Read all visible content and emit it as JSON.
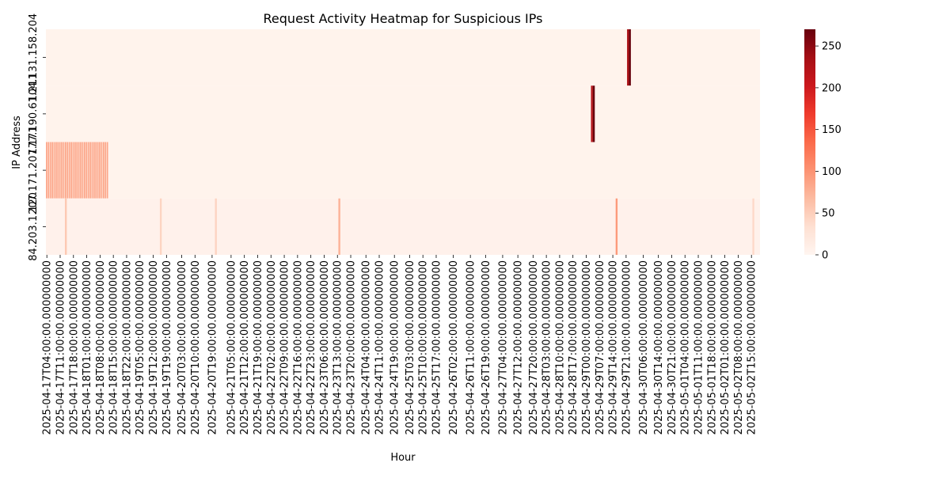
{
  "chart_data": {
    "type": "heatmap",
    "title": "Request Activity Heatmap for Suspicious IPs",
    "xlabel": "Hour",
    "ylabel": "IP Address",
    "y_categories": [
      "104.131.158.204",
      "177.190.61.211",
      "207.171.207.171",
      "84.203.1.120"
    ],
    "x_start": "2025-04-17T04:00:00",
    "x_end": "2025-05-02T19:00:00",
    "x_tick_labels": [
      "2025-04-17T04:00:00.000000000",
      "2025-04-17T11:00:00.000000000",
      "2025-04-17T18:00:00.000000000",
      "2025-04-18T01:00:00.000000000",
      "2025-04-18T08:00:00.000000000",
      "2025-04-18T15:00:00.000000000",
      "2025-04-18T22:00:00.000000000",
      "2025-04-19T05:00:00.000000000",
      "2025-04-19T12:00:00.000000000",
      "2025-04-19T19:00:00.000000000",
      "2025-04-20T03:00:00.000000000",
      "2025-04-20T10:00:00.000000000",
      "2025-04-20T19:00:00.000000000",
      "2025-04-21T05:00:00.000000000",
      "2025-04-21T12:00:00.000000000",
      "2025-04-21T19:00:00.000000000",
      "2025-04-22T02:00:00.000000000",
      "2025-04-22T09:00:00.000000000",
      "2025-04-22T16:00:00.000000000",
      "2025-04-22T23:00:00.000000000",
      "2025-04-23T06:00:00.000000000",
      "2025-04-23T13:00:00.000000000",
      "2025-04-23T20:00:00.000000000",
      "2025-04-24T04:00:00.000000000",
      "2025-04-24T11:00:00.000000000",
      "2025-04-24T19:00:00.000000000",
      "2025-04-25T03:00:00.000000000",
      "2025-04-25T10:00:00.000000000",
      "2025-04-25T17:00:00.000000000",
      "2025-04-26T02:00:00.000000000",
      "2025-04-26T11:00:00.000000000",
      "2025-04-26T19:00:00.000000000",
      "2025-04-27T04:00:00.000000000",
      "2025-04-27T12:00:00.000000000",
      "2025-04-27T20:00:00.000000000",
      "2025-04-28T03:00:00.000000000",
      "2025-04-28T10:00:00.000000000",
      "2025-04-28T17:00:00.000000000",
      "2025-04-29T00:00:00.000000000",
      "2025-04-29T07:00:00.000000000",
      "2025-04-29T14:00:00.000000000",
      "2025-04-29T21:00:00.000000000",
      "2025-04-30T06:00:00.000000000",
      "2025-04-30T14:00:00.000000000",
      "2025-04-30T21:00:00.000000000",
      "2025-05-01T04:00:00.000000000",
      "2025-05-01T11:00:00.000000000",
      "2025-05-01T18:00:00.000000000",
      "2025-05-02T01:00:00.000000000",
      "2025-05-02T08:00:00.000000000",
      "2025-05-02T15:00:00.000000000"
    ],
    "colorbar": {
      "min": 0,
      "max": 270,
      "ticks": [
        0,
        50,
        100,
        150,
        200,
        250
      ]
    },
    "colormap": [
      "#fff5f0",
      "#fee0d2",
      "#fcbba1",
      "#fc9272",
      "#fb6a4a",
      "#ef3b2c",
      "#cb181d",
      "#a50f15",
      "#67000d"
    ],
    "series": [
      {
        "ip": "104.131.158.204",
        "background": 4,
        "events": [
          {
            "time": "2025-04-29T22:00:00",
            "value": 230
          },
          {
            "time": "2025-04-29T23:00:00",
            "value": 270
          }
        ]
      },
      {
        "ip": "177.190.61.211",
        "background": 4,
        "events": [
          {
            "time": "2025-04-29T03:00:00",
            "value": 220
          },
          {
            "time": "2025-04-29T04:00:00",
            "value": 270
          }
        ]
      },
      {
        "ip": "207.171.207.171",
        "background": 4,
        "burst": {
          "start": "2025-04-17T04:00:00",
          "end": "2025-04-18T12:00:00",
          "value": 85
        },
        "events": []
      },
      {
        "ip": "84.203.1.120",
        "background": 6,
        "events": [
          {
            "time": "2025-04-17T14:00:00",
            "value": 55
          },
          {
            "time": "2025-04-19T16:00:00",
            "value": 45
          },
          {
            "time": "2025-04-20T21:00:00",
            "value": 45
          },
          {
            "time": "2025-04-23T14:00:00",
            "value": 75
          },
          {
            "time": "2025-04-29T16:00:00",
            "value": 95
          },
          {
            "time": "2025-05-02T16:00:00",
            "value": 40
          }
        ]
      }
    ]
  }
}
